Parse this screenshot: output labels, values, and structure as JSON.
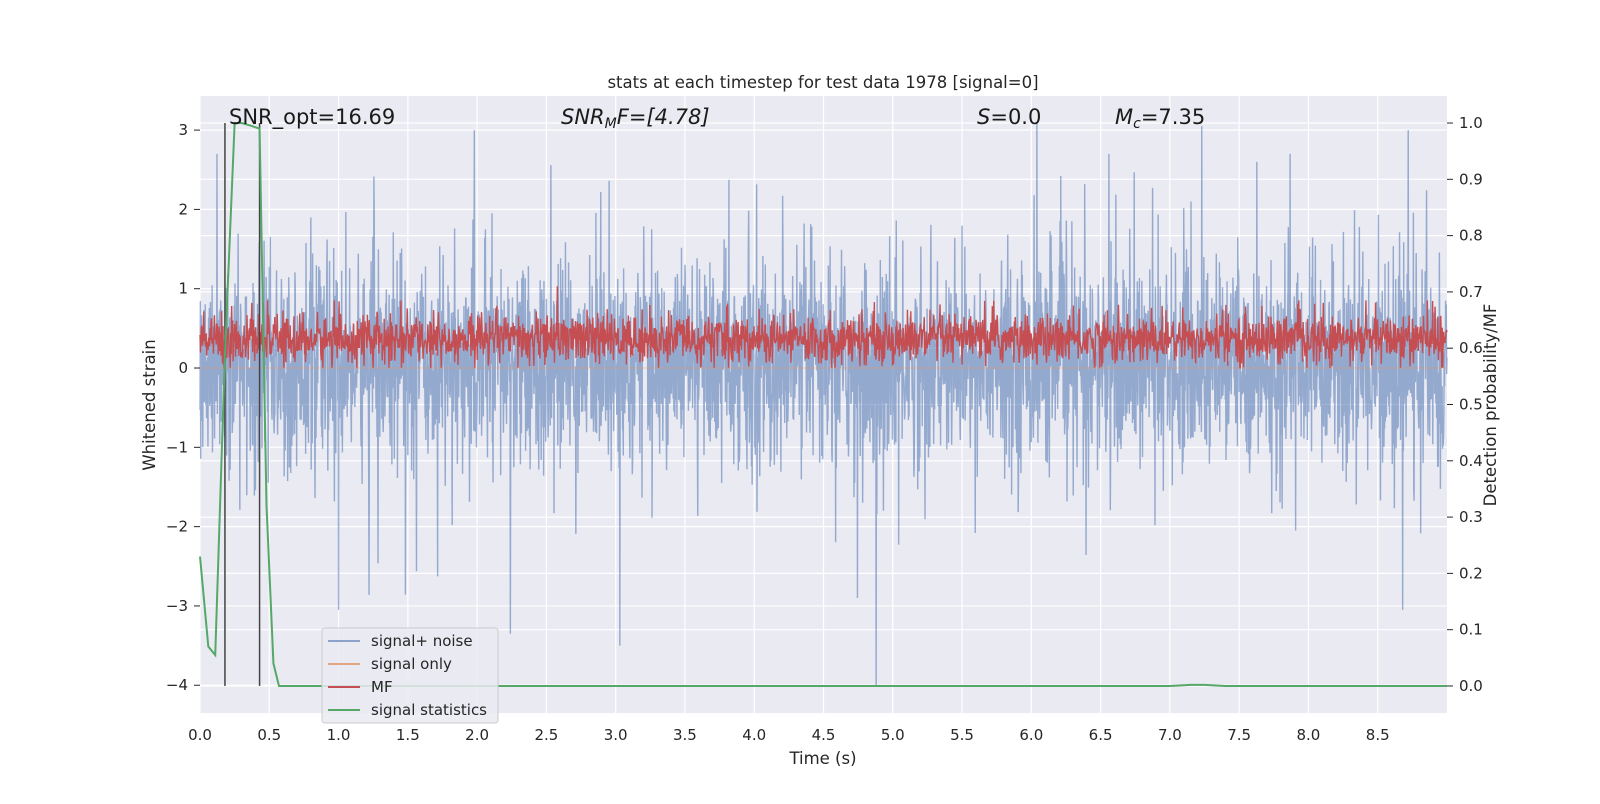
{
  "chart_data": {
    "type": "line",
    "title": "stats at each timestep for test data 1978 [signal=0]",
    "xlabel": "Time (s)",
    "ylabel_left": "Whitened strain",
    "ylabel_right": "Detection probability/MF",
    "xlim": [
      0,
      9.0
    ],
    "ylim_left": [
      -4.35,
      3.43
    ],
    "ylim_right": [
      -0.048,
      1.048
    ],
    "x_ticks": [
      0,
      0.5,
      1,
      1.5,
      2,
      2.5,
      3,
      3.5,
      4,
      4.5,
      5,
      5.5,
      6,
      6.5,
      7,
      7.5,
      8,
      8.5
    ],
    "x_tick_labels": [
      "0.0",
      "0.5",
      "1.0",
      "1.5",
      "2.0",
      "2.5",
      "3.0",
      "3.5",
      "4.0",
      "4.5",
      "5.0",
      "5.5",
      "6.0",
      "6.5",
      "7.0",
      "7.5",
      "8.0",
      "8.5"
    ],
    "y_left_ticks": [
      3,
      2,
      1,
      0,
      -1,
      -2,
      -3,
      -4
    ],
    "y_left_tick_labels": [
      "3",
      "2",
      "1",
      "0",
      "−1",
      "−2",
      "−3",
      "−4"
    ],
    "y_right_ticks": [
      1.0,
      0.9,
      0.8,
      0.7,
      0.6,
      0.5,
      0.4,
      0.3,
      0.2,
      0.1,
      0.0
    ],
    "y_right_tick_labels": [
      "1.0",
      "0.9",
      "0.8",
      "0.7",
      "0.6",
      "0.5",
      "0.4",
      "0.3",
      "0.2",
      "0.1",
      "0.0"
    ],
    "grid": true,
    "legend_position": "lower-left",
    "annotations": {
      "snr_opt": "SNR_opt=16.69",
      "snr_mf_label": "SNR",
      "snr_mf_sub": "M",
      "snr_mf_rest": "F=[4.78]",
      "s_label": "S",
      "s_value": "=0.0",
      "mc_label": "M",
      "mc_sub": "c",
      "mc_value": "=7.35"
    },
    "vertical_markers_x": [
      0.18,
      0.43
    ],
    "series": [
      {
        "name": "signal+ noise",
        "axis": "left",
        "color": "#4c72b0",
        "opacity": 0.55,
        "description_kind": "dense noise",
        "typical_range": [
          -1.5,
          1.7
        ],
        "peak_points": [
          {
            "x": 1.98,
            "y": 3.0
          },
          {
            "x": 6.04,
            "y": 3.1
          },
          {
            "x": 7.23,
            "y": 3.05
          },
          {
            "x": 8.72,
            "y": 3.0
          },
          {
            "x": 3.03,
            "y": -3.5
          },
          {
            "x": 2.24,
            "y": -3.35
          },
          {
            "x": 4.88,
            "y": -4.0
          },
          {
            "x": 8.68,
            "y": -3.05
          },
          {
            "x": 1.0,
            "y": -3.05
          }
        ]
      },
      {
        "name": "signal only",
        "axis": "left",
        "color": "#dd8452",
        "values_note": "flat at 0"
      },
      {
        "name": "MF",
        "axis": "right",
        "color": "#c44e52",
        "typical_range": [
          0.57,
          0.67
        ],
        "peak_points": [
          {
            "x": 2.58,
            "y": 0.71
          }
        ]
      },
      {
        "name": "signal statistics",
        "axis": "right",
        "color": "#55a868",
        "x": [
          0.0,
          0.06,
          0.11,
          0.18,
          0.25,
          0.3,
          0.37,
          0.43,
          0.48,
          0.53,
          0.57,
          0.65,
          1.0,
          2.0,
          3.0,
          4.0,
          5.0,
          6.0,
          7.0,
          7.15,
          7.25,
          7.4,
          8.0,
          9.0
        ],
        "y": [
          0.23,
          0.07,
          0.055,
          0.59,
          1.0,
          1.0,
          0.995,
          0.99,
          0.32,
          0.04,
          0.0,
          0.0,
          0.0,
          0.0,
          0.0,
          0.0,
          0.0,
          0.0,
          0.0,
          0.002,
          0.002,
          0.0,
          0.0,
          0.0
        ]
      }
    ]
  }
}
